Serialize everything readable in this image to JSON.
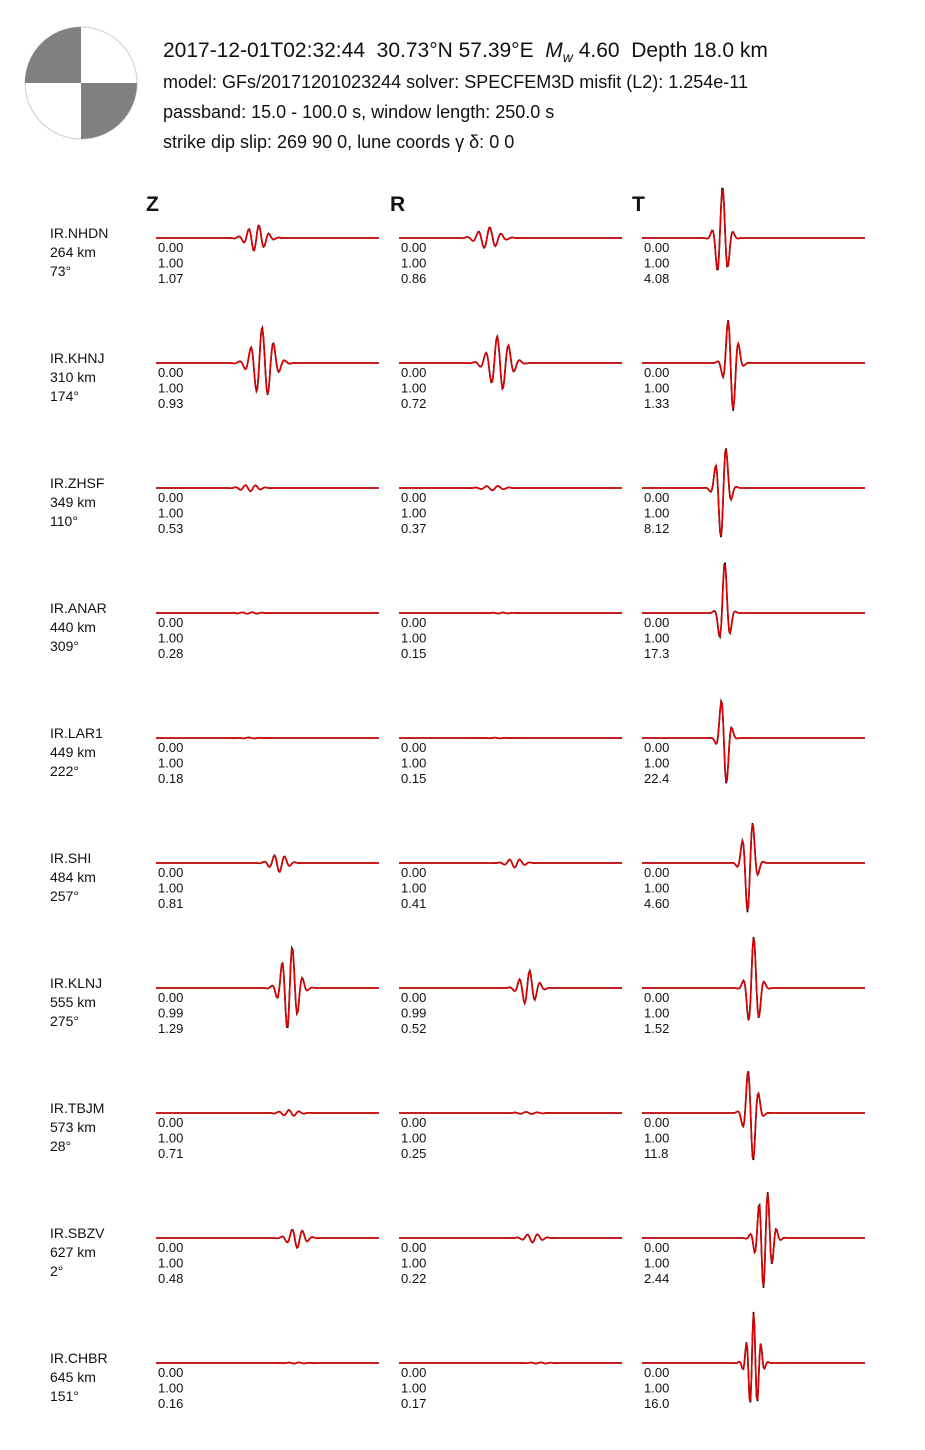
{
  "header": {
    "origin_time": "2017-12-01T02:32:44",
    "location": "30.73°N 57.39°E",
    "magnitude_symbol": "M",
    "magnitude_subscript": "w",
    "magnitude_value": "4.60",
    "depth": "Depth 18.0 km",
    "line2": "model: GFs/20171201023244   solver: SPECFEM3D   misfit (L2): 1.254e-11",
    "line3": "passband: 15.0 - 100.0 s,  window length: 250.0 s",
    "line4": "strike  dip  slip:  269  90  0,   lune coords γ  δ:  0  0"
  },
  "beachball": {
    "strike": 269,
    "dip": 90,
    "slip": 0,
    "pressure_color": "#808080",
    "tension_color": "#ffffff"
  },
  "components": [
    "Z",
    "R",
    "T"
  ],
  "colors": {
    "observed": "#000000",
    "synthetic": "#dd0000"
  },
  "chart_data": {
    "type": "line",
    "description": "Observed (black) and synthetic (red) waveforms per station and component",
    "stations": [
      {
        "name": "IR.NHDN",
        "distance": "264 km",
        "azimuth": "73°",
        "labels": {
          "Z": [
            "0.00",
            "1.00",
            "1.07"
          ],
          "R": [
            "0.00",
            "1.00",
            "0.86"
          ],
          "T": [
            "0.00",
            "1.00",
            "4.08"
          ]
        },
        "wave": {
          "Z": {
            "center": 0.45,
            "amp": 1.07,
            "width": 0.08,
            "cycles": 3.5
          },
          "R": {
            "center": 0.4,
            "amp": 0.86,
            "width": 0.09,
            "cycles": 3.5
          },
          "T": {
            "center": 0.36,
            "amp": 4.08,
            "width": 0.05,
            "cycles": 2.0
          }
        }
      },
      {
        "name": "IR.KHNJ",
        "distance": "310 km",
        "azimuth": "174°",
        "labels": {
          "Z": [
            "0.00",
            "1.00",
            "0.93"
          ],
          "R": [
            "0.00",
            "1.00",
            "0.72"
          ],
          "T": [
            "0.00",
            "1.00",
            "1.33"
          ]
        },
        "wave": {
          "Z": {
            "center": 0.48,
            "amp": 0.93,
            "width": 0.09,
            "cycles": 3.5
          },
          "R": {
            "center": 0.45,
            "amp": 0.72,
            "width": 0.09,
            "cycles": 3.5
          },
          "T": {
            "center": 0.4,
            "amp": 1.33,
            "width": 0.05,
            "cycles": 2.0
          }
        }
      },
      {
        "name": "IR.ZHSF",
        "distance": "349 km",
        "azimuth": "110°",
        "labels": {
          "Z": [
            "0.00",
            "1.00",
            "0.53"
          ],
          "R": [
            "0.00",
            "1.00",
            "0.37"
          ],
          "T": [
            "0.00",
            "1.00",
            "8.12"
          ]
        },
        "wave": {
          "Z": {
            "center": 0.42,
            "amp": 0.53,
            "width": 0.08,
            "cycles": 3.5
          },
          "R": {
            "center": 0.42,
            "amp": 0.37,
            "width": 0.09,
            "cycles": 3.5
          },
          "T": {
            "center": 0.36,
            "amp": 8.12,
            "width": 0.05,
            "cycles": 2.0
          }
        }
      },
      {
        "name": "IR.ANAR",
        "distance": "440 km",
        "azimuth": "309°",
        "labels": {
          "Z": [
            "0.00",
            "1.00",
            "0.28"
          ],
          "R": [
            "0.00",
            "1.00",
            "0.15"
          ],
          "T": [
            "0.00",
            "1.00",
            "17.3"
          ]
        },
        "wave": {
          "Z": {
            "center": 0.42,
            "amp": 0.28,
            "width": 0.09,
            "cycles": 4.0
          },
          "R": {
            "center": 0.46,
            "amp": 0.15,
            "width": 0.09,
            "cycles": 4.0
          },
          "T": {
            "center": 0.37,
            "amp": 17.3,
            "width": 0.04,
            "cycles": 1.5
          }
        }
      },
      {
        "name": "IR.LAR1",
        "distance": "449 km",
        "azimuth": "222°",
        "labels": {
          "Z": [
            "0.00",
            "1.00",
            "0.18"
          ],
          "R": [
            "0.00",
            "1.00",
            "0.15"
          ],
          "T": [
            "0.00",
            "1.00",
            "22.4"
          ]
        },
        "wave": {
          "Z": {
            "center": 0.42,
            "amp": 0.18,
            "width": 0.1,
            "cycles": 4.0
          },
          "R": {
            "center": 0.44,
            "amp": 0.15,
            "width": 0.1,
            "cycles": 4.0
          },
          "T": {
            "center": 0.37,
            "amp": 22.4,
            "width": 0.04,
            "cycles": 1.5
          }
        }
      },
      {
        "name": "IR.SHI",
        "distance": "484 km",
        "azimuth": "257°",
        "labels": {
          "Z": [
            "0.00",
            "1.00",
            "0.81"
          ],
          "R": [
            "0.00",
            "1.00",
            "0.41"
          ],
          "T": [
            "0.00",
            "1.00",
            "4.60"
          ]
        },
        "wave": {
          "Z": {
            "center": 0.55,
            "amp": 0.81,
            "width": 0.07,
            "cycles": 3.0
          },
          "R": {
            "center": 0.52,
            "amp": 0.41,
            "width": 0.07,
            "cycles": 3.0
          },
          "T": {
            "center": 0.48,
            "amp": 4.6,
            "width": 0.05,
            "cycles": 2.0
          }
        }
      },
      {
        "name": "IR.KLNJ",
        "distance": "555 km",
        "azimuth": "275°",
        "labels": {
          "Z": [
            "0.00",
            "0.99",
            "1.29"
          ],
          "R": [
            "0.00",
            "0.99",
            "0.52"
          ],
          "T": [
            "0.00",
            "1.00",
            "1.52"
          ]
        },
        "wave": {
          "Z": {
            "center": 0.6,
            "amp": 1.29,
            "width": 0.07,
            "cycles": 3.0
          },
          "R": {
            "center": 0.58,
            "amp": 0.52,
            "width": 0.07,
            "cycles": 3.0
          },
          "T": {
            "center": 0.5,
            "amp": 1.52,
            "width": 0.05,
            "cycles": 2.0
          }
        }
      },
      {
        "name": "IR.TBJM",
        "distance": "573 km",
        "azimuth": "28°",
        "labels": {
          "Z": [
            "0.00",
            "1.00",
            "0.71"
          ],
          "R": [
            "0.00",
            "1.00",
            "0.25"
          ],
          "T": [
            "0.00",
            "1.00",
            "11.8"
          ]
        },
        "wave": {
          "Z": {
            "center": 0.6,
            "amp": 0.71,
            "width": 0.08,
            "cycles": 3.5
          },
          "R": {
            "center": 0.58,
            "amp": 0.25,
            "width": 0.09,
            "cycles": 3.5
          },
          "T": {
            "center": 0.49,
            "amp": 11.8,
            "width": 0.05,
            "cycles": 2.0
          }
        }
      },
      {
        "name": "IR.SBZV",
        "distance": "627 km",
        "azimuth": "2°",
        "labels": {
          "Z": [
            "0.00",
            "1.00",
            "0.48"
          ],
          "R": [
            "0.00",
            "1.00",
            "0.22"
          ],
          "T": [
            "0.00",
            "1.00",
            "2.44"
          ]
        },
        "wave": {
          "Z": {
            "center": 0.63,
            "amp": 0.48,
            "width": 0.07,
            "cycles": 3.0
          },
          "R": {
            "center": 0.6,
            "amp": 0.22,
            "width": 0.07,
            "cycles": 3.0
          },
          "T": {
            "center": 0.55,
            "amp": 2.44,
            "width": 0.06,
            "cycles": 3.0
          }
        }
      },
      {
        "name": "IR.CHBR",
        "distance": "645 km",
        "azimuth": "151°",
        "labels": {
          "Z": [
            "0.00",
            "1.00",
            "0.16"
          ],
          "R": [
            "0.00",
            "1.00",
            "0.17"
          ],
          "T": [
            "0.00",
            "1.00",
            "16.0"
          ]
        },
        "wave": {
          "Z": {
            "center": 0.63,
            "amp": 0.16,
            "width": 0.09,
            "cycles": 4.0
          },
          "R": {
            "center": 0.63,
            "amp": 0.17,
            "width": 0.09,
            "cycles": 4.0
          },
          "T": {
            "center": 0.5,
            "amp": 16.0,
            "width": 0.05,
            "cycles": 3.0
          }
        }
      }
    ]
  }
}
